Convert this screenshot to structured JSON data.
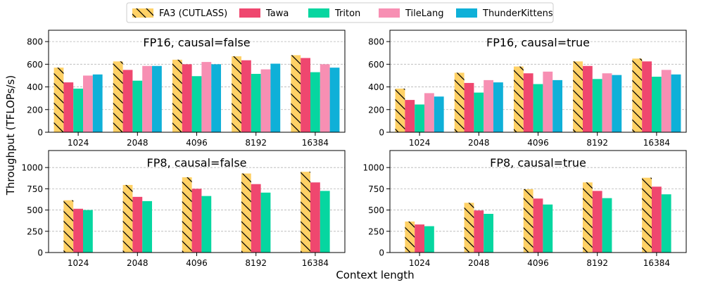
{
  "figure": {
    "ylabel": "Throughput (TFLOPs/s)",
    "xlabel": "Context length"
  },
  "legend": {
    "placement": "top-center",
    "items": [
      {
        "name": "FA3 (CUTLASS)",
        "color": "#ffd166",
        "hatch": true
      },
      {
        "name": "Tawa",
        "color": "#ef476f",
        "hatch": false
      },
      {
        "name": "Triton",
        "color": "#06d6a0",
        "hatch": false
      },
      {
        "name": "TileLang",
        "color": "#f78fb3",
        "hatch": false
      },
      {
        "name": "ThunderKittens",
        "color": "#0fb0d8",
        "hatch": false
      }
    ]
  },
  "chart_data": [
    {
      "type": "bar",
      "title": "FP16, causal=false",
      "categories": [
        "1024",
        "2048",
        "4096",
        "8192",
        "16384"
      ],
      "ylim": [
        0,
        900
      ],
      "yticks": [
        0,
        200,
        400,
        600,
        800
      ],
      "grid": true,
      "series": [
        {
          "name": "FA3 (CUTLASS)",
          "values": [
            570,
            625,
            640,
            670,
            680
          ]
        },
        {
          "name": "Tawa",
          "values": [
            440,
            550,
            600,
            635,
            655
          ]
        },
        {
          "name": "Triton",
          "values": [
            385,
            455,
            495,
            515,
            530
          ]
        },
        {
          "name": "TileLang",
          "values": [
            500,
            585,
            620,
            555,
            600
          ]
        },
        {
          "name": "ThunderKittens",
          "values": [
            510,
            585,
            600,
            605,
            570
          ]
        }
      ]
    },
    {
      "type": "bar",
      "title": "FP16, causal=true",
      "categories": [
        "1024",
        "2048",
        "4096",
        "8192",
        "16384"
      ],
      "ylim": [
        0,
        900
      ],
      "yticks": [
        0,
        200,
        400,
        600,
        800
      ],
      "grid": true,
      "series": [
        {
          "name": "FA3 (CUTLASS)",
          "values": [
            385,
            525,
            580,
            625,
            650
          ]
        },
        {
          "name": "Tawa",
          "values": [
            285,
            435,
            520,
            585,
            625
          ]
        },
        {
          "name": "Triton",
          "values": [
            245,
            350,
            425,
            470,
            490
          ]
        },
        {
          "name": "TileLang",
          "values": [
            345,
            460,
            535,
            520,
            550
          ]
        },
        {
          "name": "ThunderKittens",
          "values": [
            315,
            440,
            460,
            505,
            510
          ]
        }
      ]
    },
    {
      "type": "bar",
      "title": "FP8, causal=false",
      "categories": [
        "1024",
        "2048",
        "4096",
        "8192",
        "16384"
      ],
      "ylim": [
        0,
        1200
      ],
      "yticks": [
        0,
        250,
        500,
        750,
        1000
      ],
      "grid": true,
      "series": [
        {
          "name": "FA3 (CUTLASS)",
          "values": [
            615,
            795,
            885,
            930,
            950
          ]
        },
        {
          "name": "Tawa",
          "values": [
            515,
            655,
            750,
            805,
            825
          ]
        },
        {
          "name": "Triton",
          "values": [
            500,
            605,
            665,
            705,
            725
          ]
        }
      ]
    },
    {
      "type": "bar",
      "title": "FP8, causal=true",
      "categories": [
        "1024",
        "2048",
        "4096",
        "8192",
        "16384"
      ],
      "ylim": [
        0,
        1200
      ],
      "yticks": [
        0,
        250,
        500,
        750,
        1000
      ],
      "grid": true,
      "series": [
        {
          "name": "FA3 (CUTLASS)",
          "values": [
            365,
            585,
            745,
            825,
            880
          ]
        },
        {
          "name": "Tawa",
          "values": [
            330,
            495,
            635,
            725,
            775
          ]
        },
        {
          "name": "Triton",
          "values": [
            310,
            455,
            565,
            640,
            685
          ]
        }
      ]
    }
  ]
}
